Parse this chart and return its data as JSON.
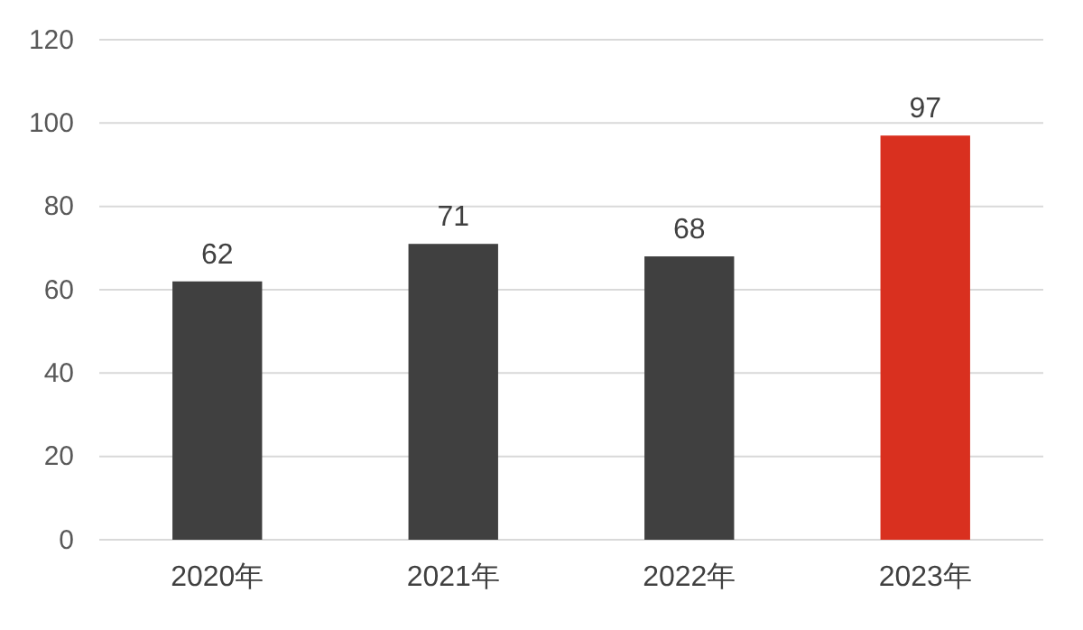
{
  "chart_data": {
    "type": "bar",
    "categories": [
      "2020年",
      "2021年",
      "2022年",
      "2023年"
    ],
    "values": [
      62,
      71,
      68,
      97
    ],
    "colors": [
      "#404040",
      "#404040",
      "#404040",
      "#d9301f"
    ],
    "ylim": [
      0,
      120
    ],
    "yticks": [
      0,
      20,
      40,
      60,
      80,
      100,
      120
    ],
    "grid": "y",
    "data_labels": true
  }
}
